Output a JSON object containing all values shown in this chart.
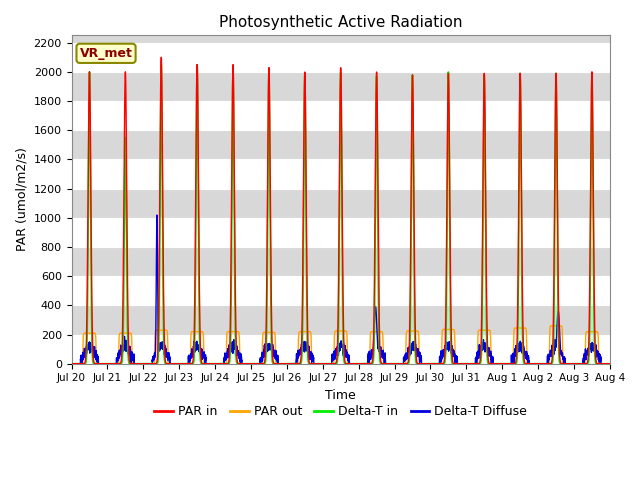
{
  "title": "Photosynthetic Active Radiation",
  "xlabel": "Time",
  "ylabel": "PAR (umol/m2/s)",
  "ylim": [
    0,
    2250
  ],
  "yticks": [
    0,
    200,
    400,
    600,
    800,
    1000,
    1200,
    1400,
    1600,
    1800,
    2000,
    2200
  ],
  "legend_label": "VR_met",
  "axes_facecolor": "#d8d8d8",
  "colors": {
    "PAR_in": "#ff0000",
    "PAR_out": "#ffa500",
    "Delta_T_in": "#00ee00",
    "Delta_T_Diffuse": "#0000dd"
  },
  "line_width": 1.0,
  "n_days": 15,
  "x_tick_labels": [
    "Jul 20",
    "Jul 21",
    "Jul 22",
    "Jul 23",
    "Jul 24",
    "Jul 25",
    "Jul 26",
    "Jul 27",
    "Jul 28",
    "Jul 29",
    "Jul 30",
    "Jul 31",
    "Aug 1",
    "Aug 2",
    "Aug 3",
    "Aug 4"
  ],
  "par_in_peaks": [
    2000,
    2000,
    2100,
    2050,
    2050,
    2030,
    2000,
    2030,
    2000,
    1980,
    1990,
    1990,
    1990,
    1990,
    2000
  ],
  "delta_t_in_peaks": [
    2000,
    1550,
    2050,
    2050,
    2000,
    2000,
    1980,
    2000,
    1970,
    1980,
    2000,
    1980,
    1990,
    1990,
    1980
  ],
  "par_out_amps": [
    210,
    210,
    230,
    220,
    220,
    215,
    220,
    225,
    220,
    225,
    235,
    230,
    245,
    260,
    220
  ],
  "spike_days": [
    2,
    8,
    13
  ],
  "spike_amps": [
    1020,
    390,
    360
  ],
  "spike_centers": [
    0.38,
    0.47,
    0.56
  ],
  "spike_sigmas": [
    0.018,
    0.04,
    0.04
  ]
}
